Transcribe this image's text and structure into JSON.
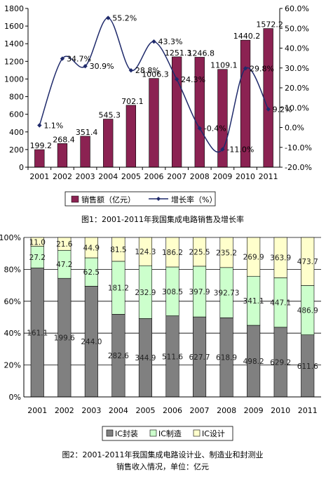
{
  "colors": {
    "bar_sales": "#8b2252",
    "line_growth": "#1f2a6b",
    "ic_package": "#808080",
    "ic_manufacture": "#ccffcc",
    "ic_design": "#ffffcc"
  },
  "chart_data": [
    {
      "type": "bar",
      "title": "图1：2001-2011年我国集成电路销售及增长率",
      "categories": [
        "2001",
        "2002",
        "2003",
        "2004",
        "2005",
        "2006",
        "2007",
        "2008",
        "2009",
        "2010",
        "2011"
      ],
      "series": [
        {
          "name": "销售额（亿元）",
          "type": "bar",
          "axis": "left",
          "values": [
            199.2,
            268.4,
            351.4,
            545.3,
            702.1,
            1006.3,
            1251.3,
            1246.8,
            1109.1,
            1440.2,
            1572.2
          ],
          "labels": [
            "199.2",
            "268.4",
            "351.4",
            "545.3",
            "702.1",
            "1006.3",
            "1251.3",
            "1246.8",
            "1109.1",
            "1440.2",
            "1572.2"
          ]
        },
        {
          "name": "增长率（%）",
          "type": "line",
          "axis": "right",
          "values": [
            1.1,
            34.7,
            30.9,
            55.2,
            28.8,
            43.3,
            24.3,
            -0.4,
            -11.0,
            29.8,
            9.2
          ],
          "labels": [
            "1.1%",
            "34.7%",
            "30.9%",
            "55.2%",
            "28.8%",
            "43.3%",
            "24.3%",
            "-0.4%",
            "-11.0%",
            "29.8%",
            "9.2%"
          ]
        }
      ],
      "ylim": [
        0,
        1800
      ],
      "yticks": [
        "0",
        "200",
        "400",
        "600",
        "800",
        "1000",
        "1200",
        "1400",
        "1600",
        "1800"
      ],
      "y2lim": [
        -20,
        60
      ],
      "y2ticks": [
        "-20.0%",
        "-10.0%",
        "0.0%",
        "10.0%",
        "20.0%",
        "30.0%",
        "40.0%",
        "50.0%",
        "60.0%"
      ],
      "legend": "bottom",
      "grid": false
    },
    {
      "type": "bar",
      "stacked": "percent",
      "title": "图2：2001-2011年我国集成电路设计业、制造业和封测业",
      "subtitle": "销售收入情况，单位：亿元",
      "categories": [
        "2001",
        "2002",
        "2003",
        "2004",
        "2005",
        "2006",
        "2007",
        "2008",
        "2009",
        "2010",
        "2011"
      ],
      "series": [
        {
          "name": "IC封装",
          "values": [
            161.1,
            199.6,
            244.0,
            282.6,
            344.9,
            511.6,
            627.7,
            618.9,
            498.2,
            629.2,
            611.6
          ],
          "labels": [
            "161.1",
            "199.6",
            "244.0",
            "282.6",
            "344.9",
            "511.6",
            "627.7",
            "618.9",
            "498.2",
            "629.2",
            "611.6"
          ]
        },
        {
          "name": "IC制造",
          "values": [
            27.2,
            47.2,
            62.5,
            181.2,
            232.9,
            308.5,
            397.9,
            392.73,
            341.1,
            447.1,
            486.9
          ],
          "labels": [
            "27.2",
            "47.2",
            "62.5",
            "181.2",
            "232.9",
            "308.5",
            "397.9",
            "392.73",
            "341.1",
            "447.1",
            "486.9"
          ]
        },
        {
          "name": "IC设计",
          "values": [
            11.0,
            21.6,
            44.9,
            81.5,
            124.3,
            186.2,
            225.5,
            235.2,
            269.9,
            363.9,
            473.7
          ],
          "labels": [
            "11.0",
            "21.6",
            "44.9",
            "81.5",
            "124.3",
            "186.2",
            "225.5",
            "235.2",
            "269.9",
            "363.9",
            "473.7"
          ]
        }
      ],
      "ylim": [
        0,
        100
      ],
      "yticks": [
        "0%",
        "20%",
        "40%",
        "60%",
        "80%",
        "100%"
      ],
      "legend": "bottom",
      "grid": true
    }
  ]
}
